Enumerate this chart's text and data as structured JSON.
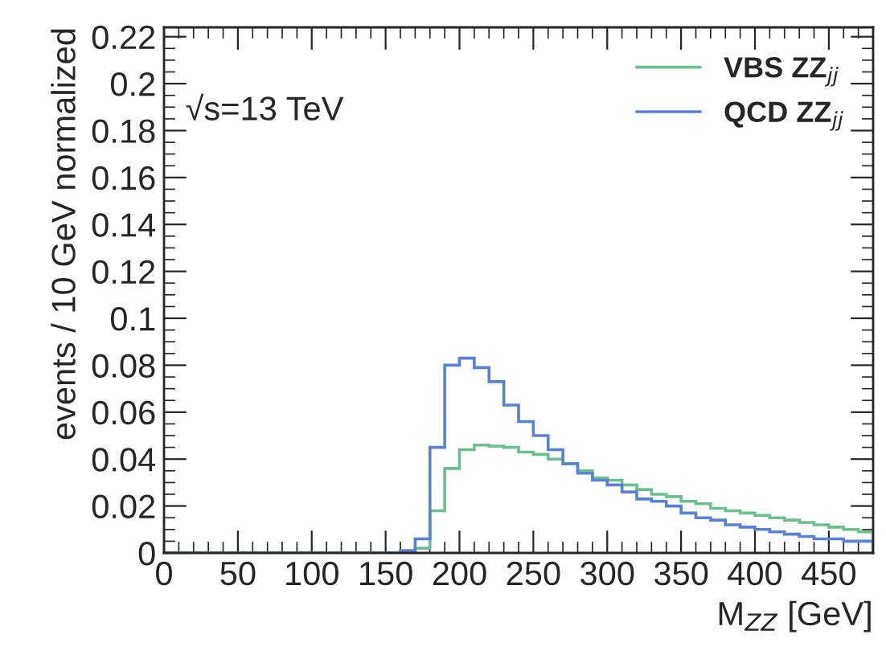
{
  "chart_data": {
    "type": "histogram",
    "xlabel": "M$_{ZZ}$ [GeV]",
    "ylabel": "events / 10 GeV normalized",
    "annotations": [
      "√s=13 TeV"
    ],
    "bins": [
      0,
      10,
      20,
      30,
      40,
      50,
      60,
      70,
      80,
      90,
      100,
      110,
      120,
      130,
      140,
      150,
      160,
      170,
      180,
      190,
      200,
      210,
      220,
      230,
      240,
      250,
      260,
      270,
      280,
      290,
      300,
      310,
      320,
      330,
      340,
      350,
      360,
      370,
      380,
      390,
      400,
      410,
      420,
      430,
      440,
      450,
      460,
      470,
      480
    ],
    "series": [
      {
        "name": "VBS ZZ$_{jj}$",
        "color": "#6dbf90",
        "values": [
          0,
          0,
          0,
          0,
          0,
          0,
          0,
          0,
          0,
          0,
          0,
          0,
          0,
          0,
          0,
          0,
          0.0005,
          0.002,
          0.018,
          0.036,
          0.044,
          0.046,
          0.0455,
          0.045,
          0.043,
          0.042,
          0.04,
          0.038,
          0.035,
          0.032,
          0.031,
          0.029,
          0.027,
          0.025,
          0.024,
          0.022,
          0.021,
          0.019,
          0.018,
          0.017,
          0.016,
          0.015,
          0.014,
          0.013,
          0.012,
          0.011,
          0.01,
          0.009
        ]
      },
      {
        "name": "QCD ZZ$_{jj}$",
        "color": "#5a80d8",
        "values": [
          0,
          0,
          0,
          0,
          0,
          0,
          0,
          0,
          0,
          0,
          0,
          0,
          0,
          0,
          0,
          0,
          0.001,
          0.006,
          0.045,
          0.08,
          0.083,
          0.079,
          0.073,
          0.063,
          0.056,
          0.05,
          0.044,
          0.038,
          0.034,
          0.031,
          0.029,
          0.026,
          0.023,
          0.022,
          0.02,
          0.017,
          0.015,
          0.014,
          0.012,
          0.011,
          0.01,
          0.009,
          0.008,
          0.007,
          0.006,
          0.006,
          0.005,
          0.005
        ]
      }
    ],
    "xlim": [
      0,
      480
    ],
    "ylim": [
      0,
      0.224
    ],
    "xticks": [
      0,
      50,
      100,
      150,
      200,
      250,
      300,
      350,
      400,
      450
    ],
    "yticks": [
      0,
      0.02,
      0.04,
      0.06,
      0.08,
      0.1,
      0.12,
      0.14,
      0.16,
      0.18,
      0.2,
      0.22
    ],
    "grid": false,
    "legend": "top right"
  }
}
